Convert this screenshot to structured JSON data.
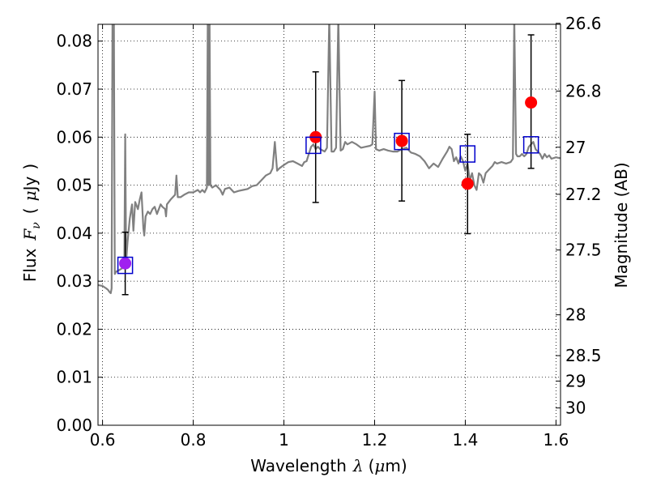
{
  "chart_data": {
    "type": "scatter",
    "xlabel_parts": [
      "Wavelength",
      "λ",
      "(",
      "μ",
      "m)"
    ],
    "ylabel_parts": [
      "Flux",
      "F",
      "ν",
      "(",
      "μ",
      "Jy",
      ")"
    ],
    "y2label": "Magnitude (AB)",
    "xlim": [
      0.59,
      1.61
    ],
    "ylim": [
      0.0,
      0.0835
    ],
    "grid": true,
    "x_ticks": [
      0.6,
      0.8,
      1.0,
      1.2,
      1.4,
      1.6
    ],
    "x_tick_labels": [
      "0.6",
      "0.8",
      "1",
      "1.2",
      "1.4",
      "1.6"
    ],
    "y_ticks": [
      0.0,
      0.01,
      0.02,
      0.03,
      0.04,
      0.05,
      0.06,
      0.07,
      0.08
    ],
    "y_tick_labels": [
      "0.00",
      "0.01",
      "0.02",
      "0.03",
      "0.04",
      "0.05",
      "0.06",
      "0.07",
      "0.08"
    ],
    "y2_ticks": [
      {
        "label": "26.6",
        "flux": 0.0837
      },
      {
        "label": "26.8",
        "flux": 0.0696
      },
      {
        "label": "27",
        "flux": 0.0579
      },
      {
        "label": "27.2",
        "flux": 0.0481
      },
      {
        "label": "27.5",
        "flux": 0.0365
      },
      {
        "label": "28",
        "flux": 0.023
      },
      {
        "label": "28.5",
        "flux": 0.0145
      },
      {
        "label": "29",
        "flux": 0.0092
      },
      {
        "label": "30",
        "flux": 0.0036
      }
    ],
    "series": [
      {
        "kind": "model-spectrum",
        "color": "#808080",
        "points": [
          [
            0.59,
            0.0292
          ],
          [
            0.6,
            0.029
          ],
          [
            0.608,
            0.0285
          ],
          [
            0.612,
            0.0282
          ],
          [
            0.615,
            0.0278
          ],
          [
            0.618,
            0.0275
          ],
          [
            0.62,
            0.0285
          ],
          [
            0.622,
            0.085
          ],
          [
            0.625,
            0.085
          ],
          [
            0.627,
            0.0315
          ],
          [
            0.63,
            0.032
          ],
          [
            0.635,
            0.0322
          ],
          [
            0.64,
            0.0325
          ],
          [
            0.645,
            0.0328
          ],
          [
            0.648,
            0.0335
          ],
          [
            0.65,
            0.0606
          ],
          [
            0.652,
            0.034
          ],
          [
            0.655,
            0.038
          ],
          [
            0.66,
            0.043
          ],
          [
            0.665,
            0.046
          ],
          [
            0.668,
            0.0405
          ],
          [
            0.672,
            0.0465
          ],
          [
            0.678,
            0.045
          ],
          [
            0.682,
            0.047
          ],
          [
            0.686,
            0.0485
          ],
          [
            0.69,
            0.041
          ],
          [
            0.692,
            0.0395
          ],
          [
            0.695,
            0.0435
          ],
          [
            0.7,
            0.0445
          ],
          [
            0.705,
            0.044
          ],
          [
            0.71,
            0.045
          ],
          [
            0.715,
            0.0455
          ],
          [
            0.72,
            0.044
          ],
          [
            0.728,
            0.046
          ],
          [
            0.732,
            0.0455
          ],
          [
            0.738,
            0.045
          ],
          [
            0.74,
            0.0435
          ],
          [
            0.742,
            0.046
          ],
          [
            0.75,
            0.047
          ],
          [
            0.755,
            0.0475
          ],
          [
            0.76,
            0.048
          ],
          [
            0.763,
            0.052
          ],
          [
            0.766,
            0.0475
          ],
          [
            0.772,
            0.0475
          ],
          [
            0.78,
            0.048
          ],
          [
            0.79,
            0.0485
          ],
          [
            0.8,
            0.0485
          ],
          [
            0.81,
            0.049
          ],
          [
            0.815,
            0.0485
          ],
          [
            0.82,
            0.049
          ],
          [
            0.825,
            0.0485
          ],
          [
            0.83,
            0.0495
          ],
          [
            0.832,
            0.085
          ],
          [
            0.834,
            0.05
          ],
          [
            0.836,
            0.085
          ],
          [
            0.838,
            0.05
          ],
          [
            0.842,
            0.0495
          ],
          [
            0.85,
            0.05
          ],
          [
            0.86,
            0.049
          ],
          [
            0.865,
            0.048
          ],
          [
            0.87,
            0.0492
          ],
          [
            0.88,
            0.0495
          ],
          [
            0.89,
            0.0485
          ],
          [
            0.9,
            0.0488
          ],
          [
            0.91,
            0.049
          ],
          [
            0.92,
            0.0492
          ],
          [
            0.93,
            0.0498
          ],
          [
            0.94,
            0.05
          ],
          [
            0.95,
            0.051
          ],
          [
            0.96,
            0.052
          ],
          [
            0.97,
            0.0525
          ],
          [
            0.975,
            0.0535
          ],
          [
            0.98,
            0.059
          ],
          [
            0.985,
            0.053
          ],
          [
            0.99,
            0.0535
          ],
          [
            1.0,
            0.0542
          ],
          [
            1.01,
            0.0548
          ],
          [
            1.02,
            0.055
          ],
          [
            1.03,
            0.0545
          ],
          [
            1.04,
            0.054
          ],
          [
            1.045,
            0.0548
          ],
          [
            1.05,
            0.055
          ],
          [
            1.055,
            0.0565
          ],
          [
            1.06,
            0.058
          ],
          [
            1.065,
            0.0585
          ],
          [
            1.07,
            0.0575
          ],
          [
            1.075,
            0.058
          ],
          [
            1.08,
            0.0575
          ],
          [
            1.09,
            0.057
          ],
          [
            1.095,
            0.0578
          ],
          [
            1.1,
            0.085
          ],
          [
            1.105,
            0.057
          ],
          [
            1.11,
            0.057
          ],
          [
            1.115,
            0.0578
          ],
          [
            1.12,
            0.085
          ],
          [
            1.125,
            0.0572
          ],
          [
            1.13,
            0.0575
          ],
          [
            1.135,
            0.059
          ],
          [
            1.14,
            0.0585
          ],
          [
            1.15,
            0.059
          ],
          [
            1.16,
            0.0585
          ],
          [
            1.17,
            0.0578
          ],
          [
            1.18,
            0.058
          ],
          [
            1.19,
            0.0582
          ],
          [
            1.195,
            0.0585
          ],
          [
            1.2,
            0.0695
          ],
          [
            1.203,
            0.0575
          ],
          [
            1.21,
            0.0572
          ],
          [
            1.22,
            0.0575
          ],
          [
            1.23,
            0.0572
          ],
          [
            1.24,
            0.057
          ],
          [
            1.25,
            0.057
          ],
          [
            1.26,
            0.0575
          ],
          [
            1.27,
            0.0578
          ],
          [
            1.28,
            0.0568
          ],
          [
            1.29,
            0.0565
          ],
          [
            1.3,
            0.056
          ],
          [
            1.31,
            0.055
          ],
          [
            1.32,
            0.0535
          ],
          [
            1.33,
            0.0545
          ],
          [
            1.34,
            0.0538
          ],
          [
            1.35,
            0.0555
          ],
          [
            1.36,
            0.057
          ],
          [
            1.365,
            0.058
          ],
          [
            1.37,
            0.0575
          ],
          [
            1.375,
            0.055
          ],
          [
            1.38,
            0.0558
          ],
          [
            1.385,
            0.0545
          ],
          [
            1.39,
            0.056
          ],
          [
            1.395,
            0.055
          ],
          [
            1.4,
            0.053
          ],
          [
            1.405,
            0.0545
          ],
          [
            1.41,
            0.051
          ],
          [
            1.415,
            0.0525
          ],
          [
            1.42,
            0.05
          ],
          [
            1.425,
            0.049
          ],
          [
            1.43,
            0.0525
          ],
          [
            1.435,
            0.052
          ],
          [
            1.44,
            0.0505
          ],
          [
            1.445,
            0.0525
          ],
          [
            1.45,
            0.053
          ],
          [
            1.455,
            0.0535
          ],
          [
            1.46,
            0.054
          ],
          [
            1.465,
            0.0548
          ],
          [
            1.47,
            0.0545
          ],
          [
            1.48,
            0.0548
          ],
          [
            1.49,
            0.0545
          ],
          [
            1.5,
            0.0548
          ],
          [
            1.505,
            0.0555
          ],
          [
            1.508,
            0.085
          ],
          [
            1.512,
            0.0565
          ],
          [
            1.515,
            0.056
          ],
          [
            1.52,
            0.056
          ],
          [
            1.525,
            0.0565
          ],
          [
            1.53,
            0.056
          ],
          [
            1.535,
            0.0565
          ],
          [
            1.54,
            0.058
          ],
          [
            1.545,
            0.0585
          ],
          [
            1.55,
            0.059
          ],
          [
            1.555,
            0.0575
          ],
          [
            1.56,
            0.057
          ],
          [
            1.565,
            0.0565
          ],
          [
            1.57,
            0.0555
          ],
          [
            1.575,
            0.0565
          ],
          [
            1.58,
            0.0558
          ],
          [
            1.585,
            0.0562
          ],
          [
            1.59,
            0.0555
          ],
          [
            1.6,
            0.0558
          ],
          [
            1.61,
            0.0556
          ]
        ]
      },
      {
        "kind": "observed",
        "marker": "circle",
        "colors": [
          "#a020f0",
          "#ff0000",
          "#ff0000",
          "#ff0000",
          "#ff0000"
        ],
        "points": [
          {
            "x": 0.65,
            "y": 0.0337,
            "yerr_low": 0.0272,
            "yerr_high": 0.0402
          },
          {
            "x": 1.07,
            "y": 0.06,
            "yerr_low": 0.0464,
            "yerr_high": 0.0736
          },
          {
            "x": 1.26,
            "y": 0.0592,
            "yerr_low": 0.0467,
            "yerr_high": 0.0718
          },
          {
            "x": 1.405,
            "y": 0.0503,
            "yerr_low": 0.0399,
            "yerr_high": 0.0606
          },
          {
            "x": 1.545,
            "y": 0.0672,
            "yerr_low": 0.0535,
            "yerr_high": 0.0813
          }
        ]
      },
      {
        "kind": "model-photometry",
        "marker": "square",
        "color": "#0000cc",
        "points": [
          {
            "x": 0.65,
            "y": 0.0333
          },
          {
            "x": 1.065,
            "y": 0.0583
          },
          {
            "x": 1.26,
            "y": 0.0591
          },
          {
            "x": 1.405,
            "y": 0.0565
          },
          {
            "x": 1.545,
            "y": 0.0584
          }
        ]
      }
    ]
  }
}
